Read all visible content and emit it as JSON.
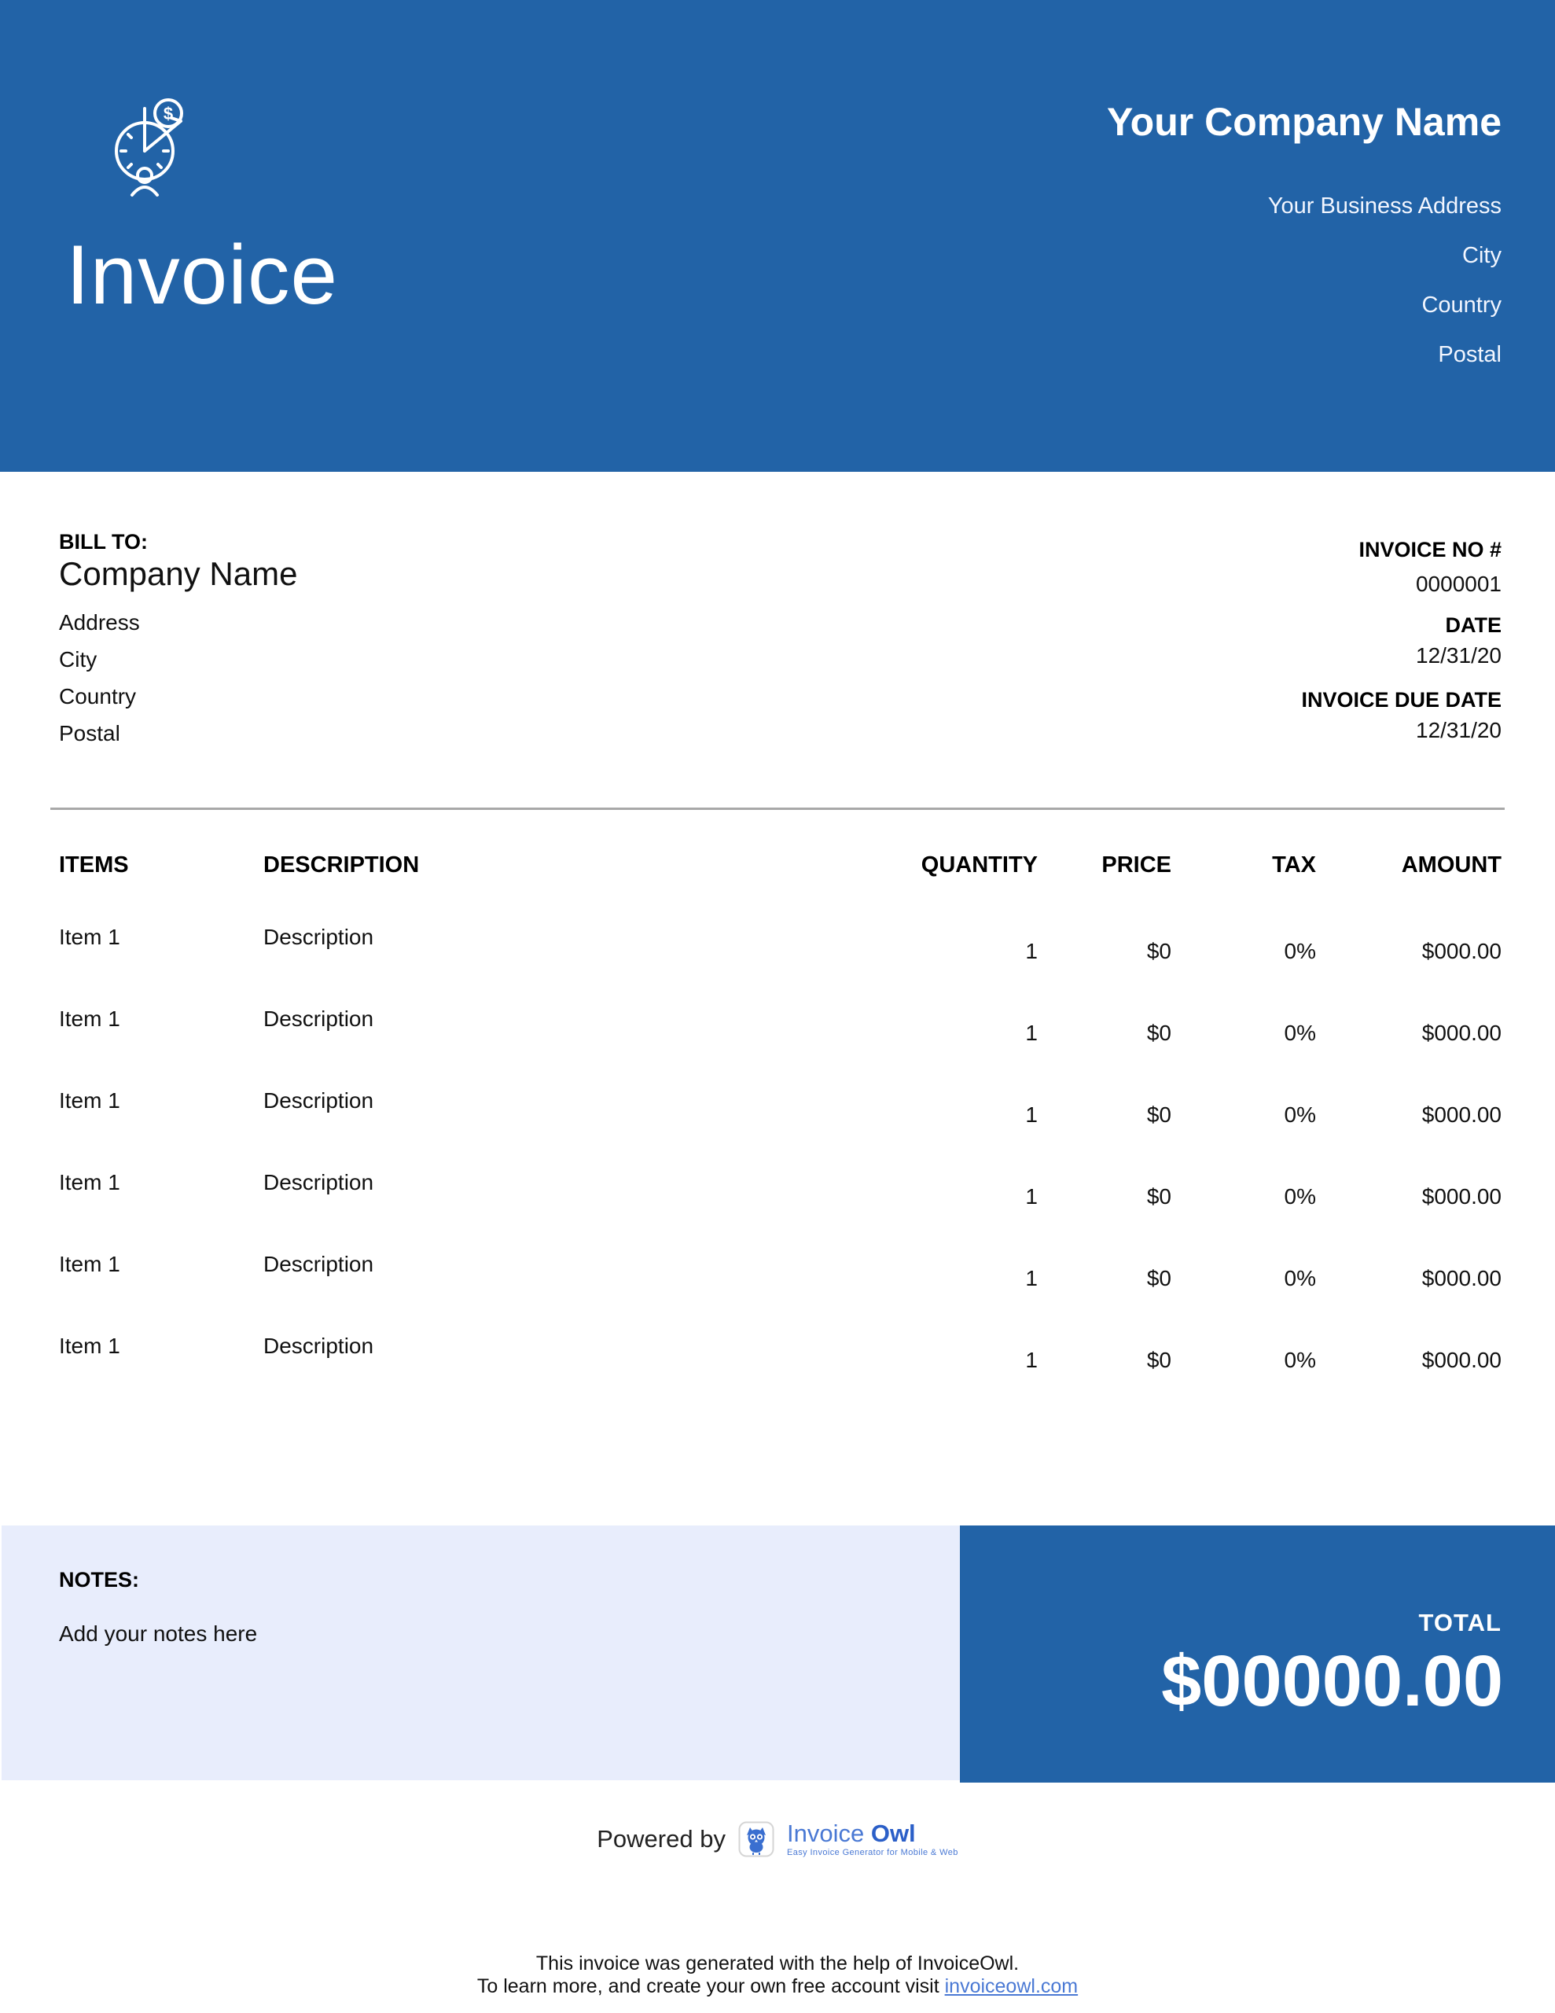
{
  "banner": {
    "title": "Invoice",
    "company_name": "Your Company Name",
    "address_lines": [
      "Your Business Address",
      "City",
      "Country",
      "Postal"
    ],
    "logo_icon": "clock-money-person-icon"
  },
  "bill_to": {
    "label": "BILL TO:",
    "company": "Company Name",
    "lines": [
      "Address",
      "City",
      "Country",
      "Postal"
    ]
  },
  "invoice_meta": {
    "fields": [
      {
        "label": "INVOICE NO #",
        "value": "0000001"
      },
      {
        "label": "DATE",
        "value": "12/31/20"
      },
      {
        "label": "INVOICE DUE DATE",
        "value": "12/31/20"
      }
    ]
  },
  "table": {
    "headers": [
      "ITEMS",
      "DESCRIPTION",
      "QUANTITY",
      "PRICE",
      "TAX",
      "AMOUNT"
    ],
    "rows": [
      {
        "item": "Item 1",
        "description": "Description",
        "quantity": "1",
        "price": "$0",
        "tax": "0%",
        "amount": "$000.00"
      },
      {
        "item": "Item 1",
        "description": "Description",
        "quantity": "1",
        "price": "$0",
        "tax": "0%",
        "amount": "$000.00"
      },
      {
        "item": "Item 1",
        "description": "Description",
        "quantity": "1",
        "price": "$0",
        "tax": "0%",
        "amount": "$000.00"
      },
      {
        "item": "Item 1",
        "description": "Description",
        "quantity": "1",
        "price": "$0",
        "tax": "0%",
        "amount": "$000.00"
      },
      {
        "item": "Item 1",
        "description": "Description",
        "quantity": "1",
        "price": "$0",
        "tax": "0%",
        "amount": "$000.00"
      },
      {
        "item": "Item 1",
        "description": "Description",
        "quantity": "1",
        "price": "$0",
        "tax": "0%",
        "amount": "$000.00"
      }
    ]
  },
  "notes": {
    "label": "NOTES:",
    "text": "Add your notes here"
  },
  "total": {
    "label": "TOTAL",
    "value": "$00000.00"
  },
  "footer": {
    "powered_by": "Powered by",
    "brand_icon": "owl-icon",
    "brand_invoice": "Invoice",
    "brand_owl": "Owl",
    "brand_tagline": "Easy Invoice Generator for Mobile & Web",
    "line1": "This invoice was generated with the help of InvoiceOwl.",
    "line2_prefix": "To learn more, and create your own free account visit ",
    "link": "invoiceowl.com"
  },
  "colors": {
    "primary_blue": "#2263a7",
    "notes_bg": "#e8edfc",
    "link_blue": "#4a79d4",
    "divider_gray": "#a8a8a8"
  }
}
